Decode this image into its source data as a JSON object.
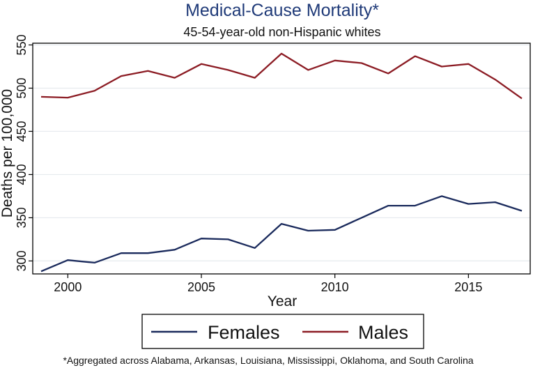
{
  "chart_data": {
    "type": "line",
    "title": "Medical-Cause Mortality*",
    "subtitle": "45-54-year-old non-Hispanic whites",
    "xlabel": "Year",
    "ylabel": "Deaths per 100,000",
    "xlim": [
      1999,
      2017
    ],
    "ylim": [
      285,
      552
    ],
    "xticks": [
      2000,
      2005,
      2010,
      2015
    ],
    "yticks": [
      300,
      350,
      400,
      450,
      500,
      550
    ],
    "grid": true,
    "legend_position": "bottom",
    "x": [
      1999,
      2000,
      2001,
      2002,
      2003,
      2004,
      2005,
      2006,
      2007,
      2008,
      2009,
      2010,
      2011,
      2012,
      2013,
      2014,
      2015,
      2016,
      2017
    ],
    "series": [
      {
        "name": "Females",
        "color": "#1a2a5c",
        "values": [
          288,
          301,
          298,
          309,
          309,
          313,
          326,
          325,
          315,
          343,
          335,
          336,
          350,
          364,
          364,
          375,
          366,
          368,
          358
        ]
      },
      {
        "name": "Males",
        "color": "#8c1c24",
        "values": [
          490,
          489,
          497,
          514,
          520,
          512,
          528,
          521,
          512,
          540,
          521,
          532,
          529,
          517,
          537,
          525,
          528,
          510,
          488
        ]
      }
    ],
    "footnote": "*Aggregated across Alabama, Arkansas, Louisiana, Mississippi, Oklahoma, and South Carolina"
  }
}
